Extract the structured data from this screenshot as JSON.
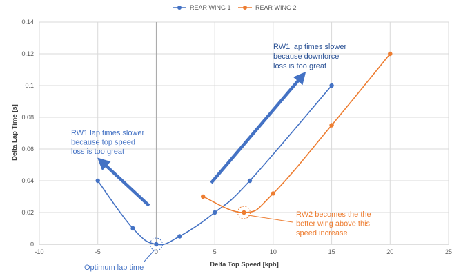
{
  "chart_data": {
    "type": "scatter",
    "xlabel": "Delta Top Speed [kph]",
    "ylabel": "Delta Lap Time [s]",
    "xlim": [
      -10,
      25
    ],
    "ylim": [
      0,
      0.14
    ],
    "x_ticks": [
      "-10",
      "-5",
      "0",
      "5",
      "10",
      "15",
      "20",
      "25"
    ],
    "y_ticks": [
      "0",
      "0.02",
      "0.04",
      "0.06",
      "0.08",
      "0.1",
      "0.12",
      "0.14"
    ],
    "grid": true,
    "legend_position": "top",
    "series": [
      {
        "name": "REAR WING 1",
        "color": "#4472c4",
        "points": [
          [
            -5,
            0.04
          ],
          [
            -2,
            0.01
          ],
          [
            0,
            0
          ],
          [
            2,
            0.005
          ],
          [
            5,
            0.02
          ],
          [
            8,
            0.04
          ],
          [
            15,
            0.1
          ]
        ]
      },
      {
        "name": "REAR WING 2",
        "color": "#ed7d31",
        "points": [
          [
            4,
            0.03
          ],
          [
            7.5,
            0.02
          ],
          [
            10,
            0.032
          ],
          [
            15,
            0.075
          ],
          [
            20,
            0.12
          ]
        ]
      }
    ],
    "annotations": [
      {
        "id": "rw1-left",
        "lines": [
          "RW1 lap times slower",
          "because top speed",
          "loss is too great"
        ],
        "color": "#4472c4"
      },
      {
        "id": "rw1-right",
        "lines": [
          "RW1 lap times slower",
          "because downforce",
          "loss is too great"
        ],
        "color": "#2f5597"
      },
      {
        "id": "optimum",
        "lines": [
          "Optimum lap time"
        ],
        "color": "#4472c4"
      },
      {
        "id": "rw2",
        "lines": [
          "RW2 becomes the the",
          "better wing above this",
          "speed increase"
        ],
        "color": "#ed7d31"
      }
    ]
  }
}
